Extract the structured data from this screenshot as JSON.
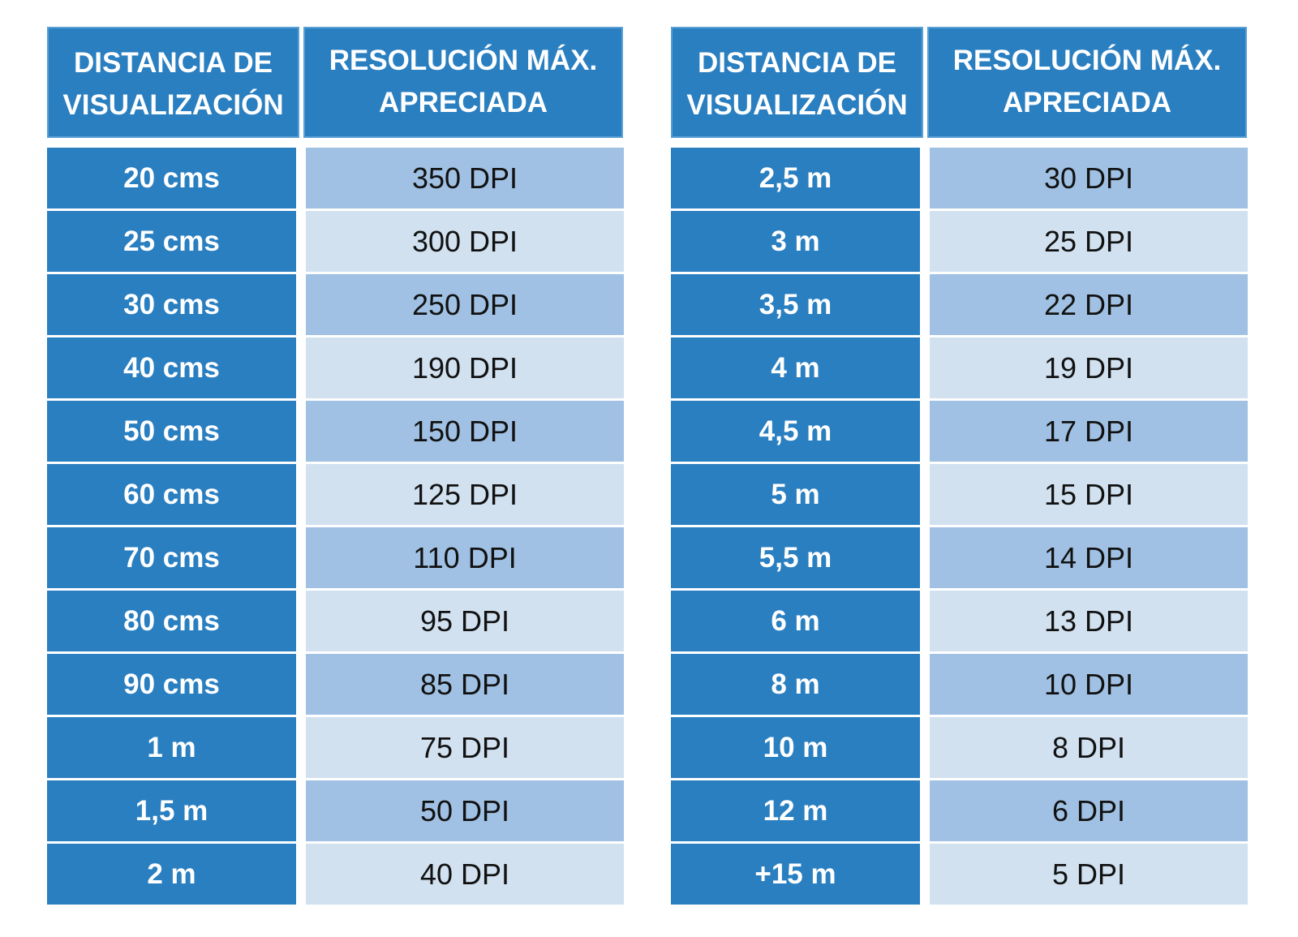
{
  "colors": {
    "header_blue": "#2a7fc1",
    "row_dark": "#a0c1e3",
    "row_light": "#d1e1f0"
  },
  "left_table": {
    "header_distance_line1": "DISTANCIA DE",
    "header_distance_line2": "VISUALIZACIÓN",
    "header_resolution_line1": "RESOLUCIÓN MÁX.",
    "header_resolution_line2": "APRECIADA",
    "rows": [
      {
        "distance": "20 cms",
        "resolution": "350 DPI"
      },
      {
        "distance": "25 cms",
        "resolution": "300 DPI"
      },
      {
        "distance": "30 cms",
        "resolution": "250 DPI"
      },
      {
        "distance": "40 cms",
        "resolution": "190 DPI"
      },
      {
        "distance": "50 cms",
        "resolution": "150 DPI"
      },
      {
        "distance": "60 cms",
        "resolution": "125 DPI"
      },
      {
        "distance": "70 cms",
        "resolution": "110 DPI"
      },
      {
        "distance": "80 cms",
        "resolution": "95 DPI"
      },
      {
        "distance": "90 cms",
        "resolution": "85 DPI"
      },
      {
        "distance": "1 m",
        "resolution": "75 DPI"
      },
      {
        "distance": "1,5 m",
        "resolution": "50 DPI"
      },
      {
        "distance": "2 m",
        "resolution": "40 DPI"
      }
    ]
  },
  "right_table": {
    "header_distance_line1": "DISTANCIA DE",
    "header_distance_line2": "VISUALIZACIÓN",
    "header_resolution_line1": "RESOLUCIÓN MÁX.",
    "header_resolution_line2": "APRECIADA",
    "rows": [
      {
        "distance": "2,5 m",
        "resolution": "30 DPI"
      },
      {
        "distance": "3 m",
        "resolution": "25 DPI"
      },
      {
        "distance": "3,5 m",
        "resolution": "22 DPI"
      },
      {
        "distance": "4 m",
        "resolution": "19 DPI"
      },
      {
        "distance": "4,5 m",
        "resolution": "17 DPI"
      },
      {
        "distance": "5 m",
        "resolution": "15 DPI"
      },
      {
        "distance": "5,5 m",
        "resolution": "14 DPI"
      },
      {
        "distance": "6 m",
        "resolution": "13 DPI"
      },
      {
        "distance": "8 m",
        "resolution": "10 DPI"
      },
      {
        "distance": "10 m",
        "resolution": "8 DPI"
      },
      {
        "distance": "12 m",
        "resolution": "6 DPI"
      },
      {
        "distance": "+15 m",
        "resolution": "5 DPI"
      }
    ]
  }
}
